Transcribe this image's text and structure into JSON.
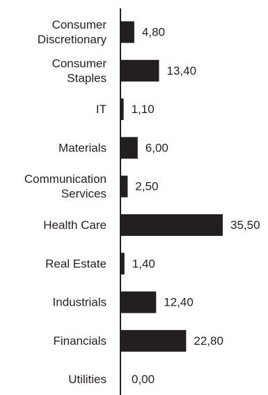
{
  "chart_data": {
    "type": "bar",
    "orientation": "horizontal",
    "categories": [
      [
        "Consumer",
        "Discretionary"
      ],
      [
        "Consumer",
        "Staples"
      ],
      [
        "IT"
      ],
      [
        "Materials"
      ],
      [
        "Communication",
        "Services"
      ],
      [
        "Health Care"
      ],
      [
        "Real Estate"
      ],
      [
        "Industrials"
      ],
      [
        "Financials"
      ],
      [
        "Utilities"
      ]
    ],
    "values": [
      4.8,
      13.4,
      1.1,
      6.0,
      2.5,
      35.5,
      1.4,
      12.4,
      22.8,
      0.0
    ],
    "value_labels": [
      "4,80",
      "13,40",
      "1,10",
      "6,00",
      "2,50",
      "35,50",
      "1,40",
      "12,40",
      "22,80",
      "0,00"
    ],
    "title": "",
    "xlabel": "",
    "ylabel": "",
    "xlim": [
      0,
      35.5
    ],
    "grid": false,
    "legend": "none",
    "colors": {
      "bar": "#231f20",
      "axis": "#231f20",
      "text": "#231f20"
    }
  }
}
